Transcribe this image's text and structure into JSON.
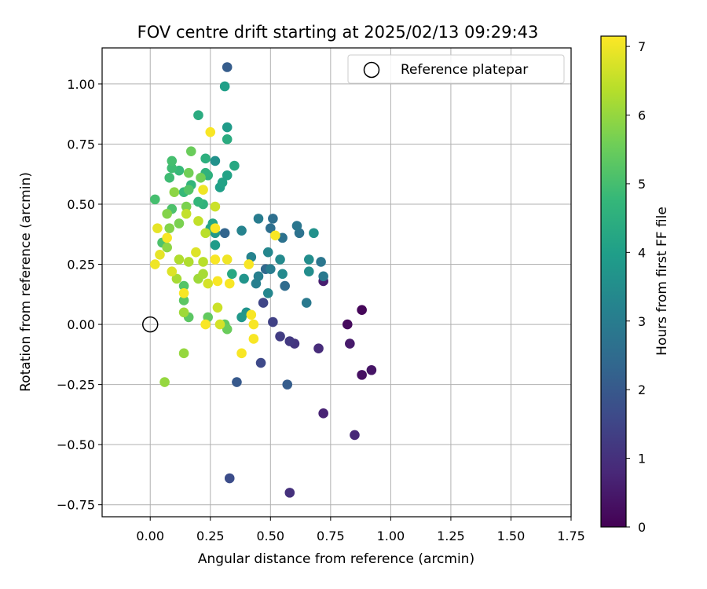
{
  "chart_data": {
    "type": "scatter",
    "title": "FOV centre drift starting at 2025/02/13 09:29:43",
    "xlabel": "Angular distance from reference (arcmin)",
    "ylabel": "Rotation from reference (arcmin)",
    "xlim": [
      -0.2,
      1.75
    ],
    "ylim": [
      -0.8,
      1.15
    ],
    "xticks": [
      "0.00",
      "0.25",
      "0.50",
      "0.75",
      "1.00",
      "1.25",
      "1.50",
      "1.75"
    ],
    "yticks": [
      "−0.75",
      "−0.50",
      "−0.25",
      "0.00",
      "0.25",
      "0.50",
      "0.75",
      "1.00"
    ],
    "xtick_values": [
      0,
      0.25,
      0.5,
      0.75,
      1.0,
      1.25,
      1.5,
      1.75
    ],
    "ytick_values": [
      -0.75,
      -0.5,
      -0.25,
      0,
      0.25,
      0.5,
      0.75,
      1.0
    ],
    "grid": true,
    "legend": {
      "position": "top-right",
      "entries": [
        "Reference platepar"
      ]
    },
    "reference_point": {
      "x": 0.0,
      "y": 0.0,
      "marker": "open-circle"
    },
    "colorbar": {
      "label": "Hours from first FF file",
      "range": [
        0,
        7.15
      ],
      "ticks": [
        "0",
        "1",
        "2",
        "3",
        "4",
        "5",
        "6",
        "7"
      ],
      "tick_values": [
        0,
        1,
        2,
        3,
        4,
        5,
        6,
        7
      ],
      "colormap": "viridis",
      "stops": [
        "#440154",
        "#482878",
        "#3e4989",
        "#31688e",
        "#26828e",
        "#1f9e89",
        "#35b779",
        "#6ece58",
        "#b5de2b",
        "#fde725"
      ]
    },
    "points": [
      {
        "x": 0.88,
        "y": 0.06,
        "t": 0.1
      },
      {
        "x": 0.82,
        "y": 0.0,
        "t": 0.2
      },
      {
        "x": 0.88,
        "y": -0.21,
        "t": 0.3
      },
      {
        "x": 0.92,
        "y": -0.19,
        "t": 0.4
      },
      {
        "x": 0.83,
        "y": -0.08,
        "t": 0.5
      },
      {
        "x": 0.72,
        "y": 0.18,
        "t": 0.6
      },
      {
        "x": 0.72,
        "y": -0.37,
        "t": 0.7
      },
      {
        "x": 0.85,
        "y": -0.46,
        "t": 0.8
      },
      {
        "x": 0.7,
        "y": -0.1,
        "t": 0.9
      },
      {
        "x": 0.58,
        "y": -0.7,
        "t": 1.0
      },
      {
        "x": 0.6,
        "y": -0.08,
        "t": 1.1
      },
      {
        "x": 0.58,
        "y": -0.07,
        "t": 1.2
      },
      {
        "x": 0.54,
        "y": -0.05,
        "t": 1.3
      },
      {
        "x": 0.51,
        "y": 0.01,
        "t": 1.4
      },
      {
        "x": 0.47,
        "y": 0.09,
        "t": 1.5
      },
      {
        "x": 0.46,
        "y": -0.16,
        "t": 1.6
      },
      {
        "x": 0.33,
        "y": -0.64,
        "t": 1.7
      },
      {
        "x": 0.36,
        "y": -0.24,
        "t": 2.0
      },
      {
        "x": 0.57,
        "y": -0.25,
        "t": 2.1
      },
      {
        "x": 0.32,
        "y": 1.07,
        "t": 2.1
      },
      {
        "x": 0.31,
        "y": 0.38,
        "t": 2.3
      },
      {
        "x": 0.48,
        "y": 0.23,
        "t": 2.4
      },
      {
        "x": 0.56,
        "y": 0.16,
        "t": 2.5
      },
      {
        "x": 0.5,
        "y": 0.4,
        "t": 2.6
      },
      {
        "x": 0.51,
        "y": 0.44,
        "t": 2.6
      },
      {
        "x": 0.55,
        "y": 0.36,
        "t": 2.7
      },
      {
        "x": 0.62,
        "y": 0.38,
        "t": 2.7
      },
      {
        "x": 0.61,
        "y": 0.41,
        "t": 2.8
      },
      {
        "x": 0.71,
        "y": 0.26,
        "t": 2.8
      },
      {
        "x": 0.72,
        "y": 0.2,
        "t": 2.9
      },
      {
        "x": 0.65,
        "y": 0.09,
        "t": 2.9
      },
      {
        "x": 0.5,
        "y": 0.23,
        "t": 3.0
      },
      {
        "x": 0.45,
        "y": 0.44,
        "t": 3.0
      },
      {
        "x": 0.44,
        "y": 0.17,
        "t": 3.1
      },
      {
        "x": 0.45,
        "y": 0.2,
        "t": 3.1
      },
      {
        "x": 0.38,
        "y": 0.39,
        "t": 3.2
      },
      {
        "x": 0.42,
        "y": 0.28,
        "t": 3.2
      },
      {
        "x": 0.49,
        "y": 0.13,
        "t": 3.3
      },
      {
        "x": 0.49,
        "y": 0.3,
        "t": 3.3
      },
      {
        "x": 0.54,
        "y": 0.27,
        "t": 3.4
      },
      {
        "x": 0.55,
        "y": 0.21,
        "t": 3.4
      },
      {
        "x": 0.66,
        "y": 0.22,
        "t": 3.5
      },
      {
        "x": 0.66,
        "y": 0.27,
        "t": 3.5
      },
      {
        "x": 0.68,
        "y": 0.38,
        "t": 3.6
      },
      {
        "x": 0.27,
        "y": 0.68,
        "t": 3.6
      },
      {
        "x": 0.39,
        "y": 0.19,
        "t": 3.7
      },
      {
        "x": 0.4,
        "y": 0.05,
        "t": 3.7
      },
      {
        "x": 0.38,
        "y": 0.03,
        "t": 3.8
      },
      {
        "x": 0.27,
        "y": 0.38,
        "t": 3.8
      },
      {
        "x": 0.27,
        "y": 0.33,
        "t": 3.9
      },
      {
        "x": 0.32,
        "y": 0.82,
        "t": 3.9
      },
      {
        "x": 0.31,
        "y": 0.99,
        "t": 4.0
      },
      {
        "x": 0.29,
        "y": 0.57,
        "t": 4.0
      },
      {
        "x": 0.3,
        "y": 0.59,
        "t": 4.1
      },
      {
        "x": 0.32,
        "y": 0.62,
        "t": 4.1
      },
      {
        "x": 0.25,
        "y": 0.4,
        "t": 4.2
      },
      {
        "x": 0.26,
        "y": 0.42,
        "t": 4.2
      },
      {
        "x": 0.34,
        "y": 0.21,
        "t": 4.3
      },
      {
        "x": 0.35,
        "y": 0.66,
        "t": 4.3
      },
      {
        "x": 0.32,
        "y": 0.77,
        "t": 4.4
      },
      {
        "x": 0.2,
        "y": 0.87,
        "t": 4.4
      },
      {
        "x": 0.23,
        "y": 0.69,
        "t": 4.5
      },
      {
        "x": 0.24,
        "y": 0.62,
        "t": 4.5
      },
      {
        "x": 0.23,
        "y": 0.63,
        "t": 4.6
      },
      {
        "x": 0.22,
        "y": 0.5,
        "t": 4.6
      },
      {
        "x": 0.2,
        "y": 0.51,
        "t": 4.7
      },
      {
        "x": 0.17,
        "y": 0.58,
        "t": 4.7
      },
      {
        "x": 0.14,
        "y": 0.55,
        "t": 4.8
      },
      {
        "x": 0.12,
        "y": 0.64,
        "t": 4.8
      },
      {
        "x": 0.08,
        "y": 0.61,
        "t": 4.9
      },
      {
        "x": 0.09,
        "y": 0.65,
        "t": 4.9
      },
      {
        "x": 0.09,
        "y": 0.68,
        "t": 5.0
      },
      {
        "x": 0.02,
        "y": 0.52,
        "t": 5.0
      },
      {
        "x": 0.05,
        "y": 0.34,
        "t": 5.1
      },
      {
        "x": 0.09,
        "y": 0.48,
        "t": 5.1
      },
      {
        "x": 0.16,
        "y": 0.56,
        "t": 5.2
      },
      {
        "x": 0.14,
        "y": 0.16,
        "t": 5.2
      },
      {
        "x": 0.14,
        "y": 0.1,
        "t": 5.3
      },
      {
        "x": 0.16,
        "y": 0.03,
        "t": 5.3
      },
      {
        "x": 0.24,
        "y": 0.03,
        "t": 5.4
      },
      {
        "x": 0.31,
        "y": 0.0,
        "t": 5.4
      },
      {
        "x": 0.32,
        "y": -0.02,
        "t": 5.5
      },
      {
        "x": 0.17,
        "y": 0.72,
        "t": 5.5
      },
      {
        "x": 0.16,
        "y": 0.63,
        "t": 5.6
      },
      {
        "x": 0.21,
        "y": 0.61,
        "t": 5.6
      },
      {
        "x": 0.15,
        "y": 0.49,
        "t": 5.7
      },
      {
        "x": 0.12,
        "y": 0.42,
        "t": 5.7
      },
      {
        "x": 0.07,
        "y": 0.46,
        "t": 5.8
      },
      {
        "x": 0.08,
        "y": 0.4,
        "t": 5.8
      },
      {
        "x": 0.07,
        "y": 0.32,
        "t": 5.9
      },
      {
        "x": 0.1,
        "y": 0.55,
        "t": 5.9
      },
      {
        "x": 0.14,
        "y": -0.12,
        "t": 6.0
      },
      {
        "x": 0.06,
        "y": -0.24,
        "t": 6.0
      },
      {
        "x": 0.14,
        "y": 0.05,
        "t": 6.1
      },
      {
        "x": 0.2,
        "y": 0.19,
        "t": 6.1
      },
      {
        "x": 0.22,
        "y": 0.21,
        "t": 6.2
      },
      {
        "x": 0.11,
        "y": 0.19,
        "t": 6.2
      },
      {
        "x": 0.12,
        "y": 0.27,
        "t": 6.3
      },
      {
        "x": 0.16,
        "y": 0.26,
        "t": 6.3
      },
      {
        "x": 0.22,
        "y": 0.26,
        "t": 6.4
      },
      {
        "x": 0.23,
        "y": 0.38,
        "t": 6.4
      },
      {
        "x": 0.2,
        "y": 0.43,
        "t": 6.5
      },
      {
        "x": 0.15,
        "y": 0.46,
        "t": 6.5
      },
      {
        "x": 0.27,
        "y": 0.49,
        "t": 6.6
      },
      {
        "x": 0.28,
        "y": 0.07,
        "t": 6.6
      },
      {
        "x": 0.29,
        "y": 0.0,
        "t": 6.7
      },
      {
        "x": 0.24,
        "y": 0.17,
        "t": 6.7
      },
      {
        "x": 0.19,
        "y": 0.3,
        "t": 6.8
      },
      {
        "x": 0.09,
        "y": 0.22,
        "t": 6.8
      },
      {
        "x": 0.04,
        "y": 0.29,
        "t": 6.9
      },
      {
        "x": 0.03,
        "y": 0.4,
        "t": 6.9
      },
      {
        "x": 0.02,
        "y": 0.25,
        "t": 7.0
      },
      {
        "x": 0.22,
        "y": 0.56,
        "t": 7.0
      },
      {
        "x": 0.32,
        "y": 0.27,
        "t": 7.0
      },
      {
        "x": 0.07,
        "y": 0.36,
        "t": 7.1
      },
      {
        "x": 0.14,
        "y": 0.13,
        "t": 7.1
      },
      {
        "x": 0.28,
        "y": 0.18,
        "t": 7.1
      },
      {
        "x": 0.33,
        "y": 0.17,
        "t": 7.1
      },
      {
        "x": 0.27,
        "y": 0.27,
        "t": 7.1
      },
      {
        "x": 0.27,
        "y": 0.4,
        "t": 7.1
      },
      {
        "x": 0.25,
        "y": 0.8,
        "t": 7.1
      },
      {
        "x": 0.41,
        "y": 0.25,
        "t": 7.1
      },
      {
        "x": 0.52,
        "y": 0.37,
        "t": 7.1
      },
      {
        "x": 0.42,
        "y": 0.04,
        "t": 7.1
      },
      {
        "x": 0.43,
        "y": 0.0,
        "t": 7.1
      },
      {
        "x": 0.43,
        "y": -0.06,
        "t": 7.1
      },
      {
        "x": 0.38,
        "y": -0.12,
        "t": 7.1
      },
      {
        "x": 0.23,
        "y": 0.0,
        "t": 7.1
      }
    ]
  }
}
